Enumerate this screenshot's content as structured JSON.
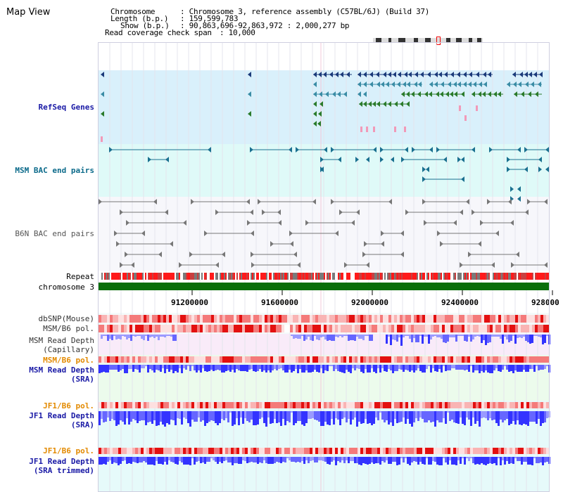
{
  "page": {
    "title": "Map View"
  },
  "header": {
    "chromosome_key": "Chromosome",
    "chromosome_value": ": Chromosome 3, reference assembly (C57BL/6J) (Build 37)",
    "length_key": "Length (b.p.)",
    "length_value": ": 159,599,783",
    "show_key": "Show (b.p.)",
    "show_value": ": 90,863,696-92,863,972 : 2,000,277 bp",
    "coverage_key": "Read coverage check span",
    "coverage_value": ": 10,000"
  },
  "tracks": {
    "refseq": "RefSeq Genes",
    "msm_bac": "MSM BAC end pairs",
    "b6n_bac": "B6N BAC end pairs",
    "repeat": "Repeat",
    "chromosome": "chromosome 3",
    "dbsnp": "dbSNP(Mouse)",
    "msm_b6_pol": "MSM/B6 pol.",
    "msm_depth_cap_1": "MSM Read Depth",
    "msm_depth_cap_2": "(Capillary)",
    "msm_b6_pol_2": "MSM/B6 pol.",
    "msm_depth_sra_1": "MSM Read Depth",
    "msm_depth_sra_2": "(SRA)",
    "jf1_b6_pol": "JF1/B6 pol.",
    "jf1_depth_sra_1": "JF1 Read Depth",
    "jf1_depth_sra_2": "(SRA)",
    "jf1_b6_pol_2": "JF1/B6 pol.",
    "jf1_depth_trim_1": "JF1 Read Depth",
    "jf1_depth_trim_2": "(SRA trimmed)"
  },
  "axis": {
    "ticks": [
      "91200000",
      "91600000",
      "92000000",
      "92400000",
      "928000"
    ]
  },
  "colors": {
    "refseq_bg": "#d9f0fb",
    "msm_bac_bg": "#dffaf8",
    "b6n_bac_bg": "#f7f7fb",
    "pol_bg": "#f4fbfb",
    "depth_bg": "#f9ebf9",
    "sra_bg": "#ecfbec",
    "jf1_bg": "#e6fafa",
    "chromosome_bar": "#0a6e0a",
    "depth_blue": "#3333ff",
    "gene_navy": "#1b3a7a",
    "gene_teal": "#3a8ca5",
    "gene_green": "#2a7a2a",
    "bac_teal": "#1a7090",
    "bac_grey": "#777777"
  }
}
